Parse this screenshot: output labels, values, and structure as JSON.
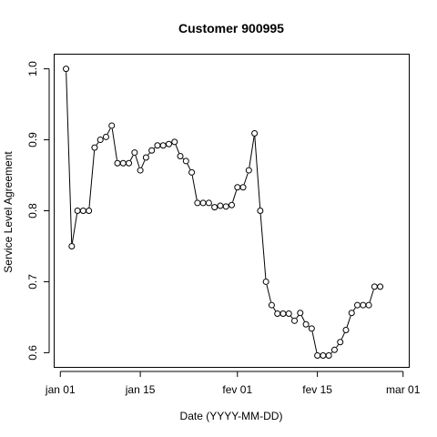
{
  "chart_data": {
    "type": "line",
    "title": "Customer 900995",
    "xlabel": "Date (YYYY-MM-DD)",
    "ylabel": "Service Level Agreement",
    "x_ticks": [
      {
        "date": "2024-01-01",
        "label": "jan 01"
      },
      {
        "date": "2024-01-15",
        "label": "jan 15"
      },
      {
        "date": "2024-02-01",
        "label": "fev 01"
      },
      {
        "date": "2024-02-15",
        "label": "fev 15"
      },
      {
        "date": "2024-03-01",
        "label": "mar 01"
      }
    ],
    "y_ticks": [
      "0.6",
      "0.7",
      "0.8",
      "0.9",
      "1.0"
    ],
    "xlim": [
      "2023-12-31",
      "2024-03-02"
    ],
    "ylim": [
      0.58,
      1.02
    ],
    "grid": false,
    "series": [
      {
        "x": [
          "2024-01-02",
          "2024-01-03",
          "2024-01-04",
          "2024-01-05",
          "2024-01-06",
          "2024-01-07",
          "2024-01-08",
          "2024-01-09",
          "2024-01-10",
          "2024-01-11",
          "2024-01-12",
          "2024-01-13",
          "2024-01-14",
          "2024-01-15",
          "2024-01-16",
          "2024-01-17",
          "2024-01-18",
          "2024-01-19",
          "2024-01-20",
          "2024-01-21",
          "2024-01-22",
          "2024-01-23",
          "2024-01-24",
          "2024-01-25",
          "2024-01-26",
          "2024-01-27",
          "2024-01-28",
          "2024-01-29",
          "2024-01-30",
          "2024-01-31",
          "2024-02-01",
          "2024-02-02",
          "2024-02-03",
          "2024-02-04",
          "2024-02-05",
          "2024-02-06",
          "2024-02-07",
          "2024-02-08",
          "2024-02-09",
          "2024-02-10",
          "2024-02-11",
          "2024-02-12",
          "2024-02-13",
          "2024-02-14",
          "2024-02-15",
          "2024-02-16",
          "2024-02-17",
          "2024-02-18",
          "2024-02-19",
          "2024-02-20",
          "2024-02-21",
          "2024-02-22",
          "2024-02-23",
          "2024-02-24",
          "2024-02-25",
          "2024-02-26"
        ],
        "values": [
          1.0,
          0.75,
          0.8,
          0.8,
          0.8,
          0.889,
          0.9,
          0.904,
          0.92,
          0.867,
          0.867,
          0.867,
          0.882,
          0.857,
          0.875,
          0.885,
          0.892,
          0.892,
          0.894,
          0.897,
          0.877,
          0.87,
          0.854,
          0.811,
          0.811,
          0.811,
          0.805,
          0.807,
          0.806,
          0.808,
          0.833,
          0.833,
          0.857,
          0.909,
          0.8,
          0.7,
          0.667,
          0.655,
          0.655,
          0.655,
          0.645,
          0.656,
          0.64,
          0.634,
          0.596,
          0.596,
          0.596,
          0.604,
          0.615,
          0.632,
          0.656,
          0.667,
          0.667,
          0.667,
          0.693,
          0.693
        ]
      }
    ]
  }
}
